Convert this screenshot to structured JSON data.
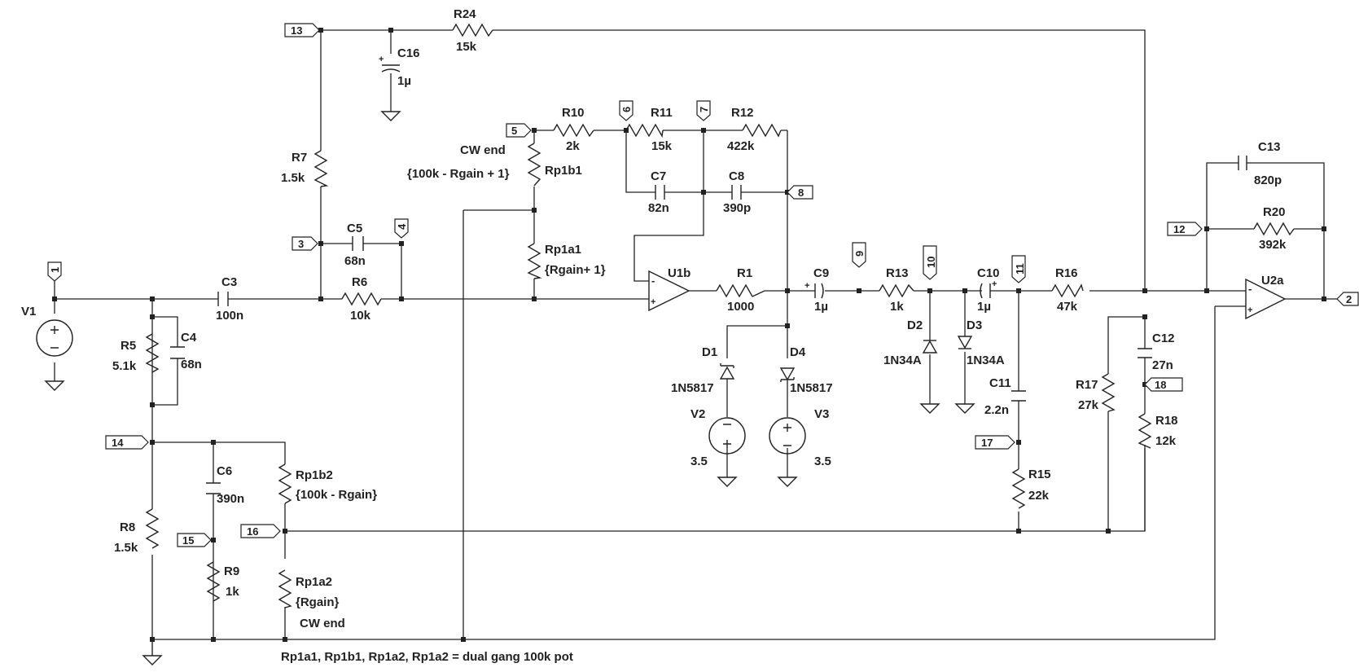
{
  "labels": {
    "R24": {
      "name": "R24",
      "value": "15k"
    },
    "C16": {
      "name": "C16",
      "value": "1µ"
    },
    "R7": {
      "name": "R7",
      "value": "1.5k"
    },
    "C5": {
      "name": "C5",
      "value": "68n"
    },
    "R6": {
      "name": "R6",
      "value": "10k"
    },
    "C3": {
      "name": "C3",
      "value": "100n"
    },
    "V1": {
      "name": "V1"
    },
    "R5": {
      "name": "R5",
      "value": "5.1k"
    },
    "C4": {
      "name": "C4",
      "value": "68n"
    },
    "C6": {
      "name": "C6",
      "value": "390n"
    },
    "R8": {
      "name": "R8",
      "value": "1.5k"
    },
    "R9": {
      "name": "R9",
      "value": "1k"
    },
    "Rp1b2": {
      "name": "Rp1b2",
      "value": "{100k - Rgain}"
    },
    "Rp1a2": {
      "name": "Rp1a2",
      "value": "{Rgain}",
      "note": "CW end"
    },
    "R10": {
      "name": "R10",
      "value": "2k"
    },
    "Rp1b1": {
      "name": "Rp1b1",
      "value": "{100k - Rgain + 1}",
      "note": "CW end"
    },
    "Rp1a1": {
      "name": "Rp1a1",
      "value": "{Rgain+ 1}"
    },
    "R11": {
      "name": "R11",
      "value": "15k"
    },
    "R12": {
      "name": "R12",
      "value": "422k"
    },
    "C7": {
      "name": "C7",
      "value": "82n"
    },
    "C8": {
      "name": "C8",
      "value": "390p"
    },
    "U1b": {
      "name": "U1b"
    },
    "R1": {
      "name": "R1",
      "value": "1000"
    },
    "C9": {
      "name": "C9",
      "value": "1µ"
    },
    "D1": {
      "name": "D1",
      "value": "1N5817"
    },
    "D4": {
      "name": "D4",
      "value": "1N5817"
    },
    "V2": {
      "name": "V2",
      "value": "3.5"
    },
    "V3": {
      "name": "V3",
      "value": "3.5"
    },
    "R13": {
      "name": "R13",
      "value": "1k"
    },
    "D2": {
      "name": "D2",
      "value": "1N34A"
    },
    "D3": {
      "name": "D3",
      "value": "1N34A"
    },
    "C10": {
      "name": "C10",
      "value": "1µ"
    },
    "C11": {
      "name": "C11",
      "value": "2.2n"
    },
    "R15": {
      "name": "R15",
      "value": "22k"
    },
    "R16": {
      "name": "R16",
      "value": "47k"
    },
    "C12": {
      "name": "C12",
      "value": "27n"
    },
    "R17": {
      "name": "R17",
      "value": "27k"
    },
    "R18": {
      "name": "R18",
      "value": "12k"
    },
    "C13": {
      "name": "C13",
      "value": "820p"
    },
    "R20": {
      "name": "R20",
      "value": "392k"
    },
    "U2a": {
      "name": "U2a"
    }
  },
  "nodes": [
    "1",
    "2",
    "3",
    "4",
    "5",
    "6",
    "7",
    "8",
    "9",
    "10",
    "11",
    "12",
    "13",
    "14",
    "15",
    "16",
    "17",
    "18"
  ],
  "footnote": "Rp1a1, Rp1b1, Rp1a2, Rp1a2 = dual gang 100k pot"
}
